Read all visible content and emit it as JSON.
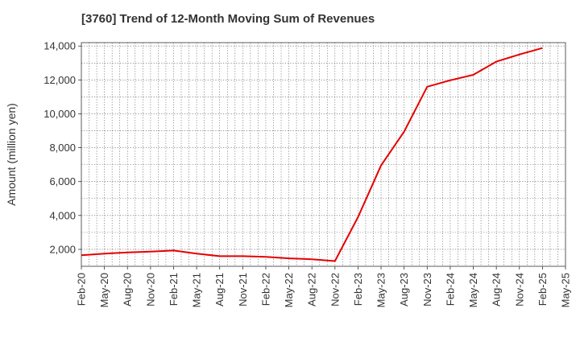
{
  "chart_data": {
    "type": "line",
    "title": "[3760]  Trend of 12-Month Moving Sum of Revenues",
    "xlabel": "",
    "ylabel": "Amount (million yen)",
    "ylim": [
      1000,
      14200
    ],
    "y_ticks": [
      2000,
      4000,
      6000,
      8000,
      10000,
      12000,
      14000
    ],
    "y_tick_labels": [
      "2,000",
      "4,000",
      "6,000",
      "8,000",
      "10,000",
      "12,000",
      "14,000"
    ],
    "x_tick_labels": [
      "Feb-20",
      "May-20",
      "Aug-20",
      "Nov-20",
      "Feb-21",
      "May-21",
      "Aug-21",
      "Nov-21",
      "Feb-22",
      "May-22",
      "Aug-22",
      "Nov-22",
      "Feb-23",
      "May-23",
      "Aug-23",
      "Nov-23",
      "Feb-24",
      "May-24",
      "Aug-24",
      "Nov-24",
      "Feb-25",
      "May-25"
    ],
    "grid": true,
    "series": [
      {
        "color": "#e60000",
        "x": [
          "Feb-20",
          "May-20",
          "Aug-20",
          "Nov-20",
          "Feb-21",
          "May-21",
          "Aug-21",
          "Nov-21",
          "Feb-22",
          "May-22",
          "Aug-22",
          "Nov-22",
          "Feb-23",
          "May-23",
          "Aug-23",
          "Nov-23",
          "Feb-24",
          "May-24",
          "Aug-24",
          "Nov-24",
          "Feb-25"
        ],
        "values": [
          1650,
          1750,
          1820,
          1870,
          1930,
          1750,
          1600,
          1600,
          1560,
          1470,
          1420,
          1310,
          3900,
          6950,
          8950,
          11600,
          11980,
          12300,
          13080,
          13500,
          13880
        ]
      }
    ]
  }
}
